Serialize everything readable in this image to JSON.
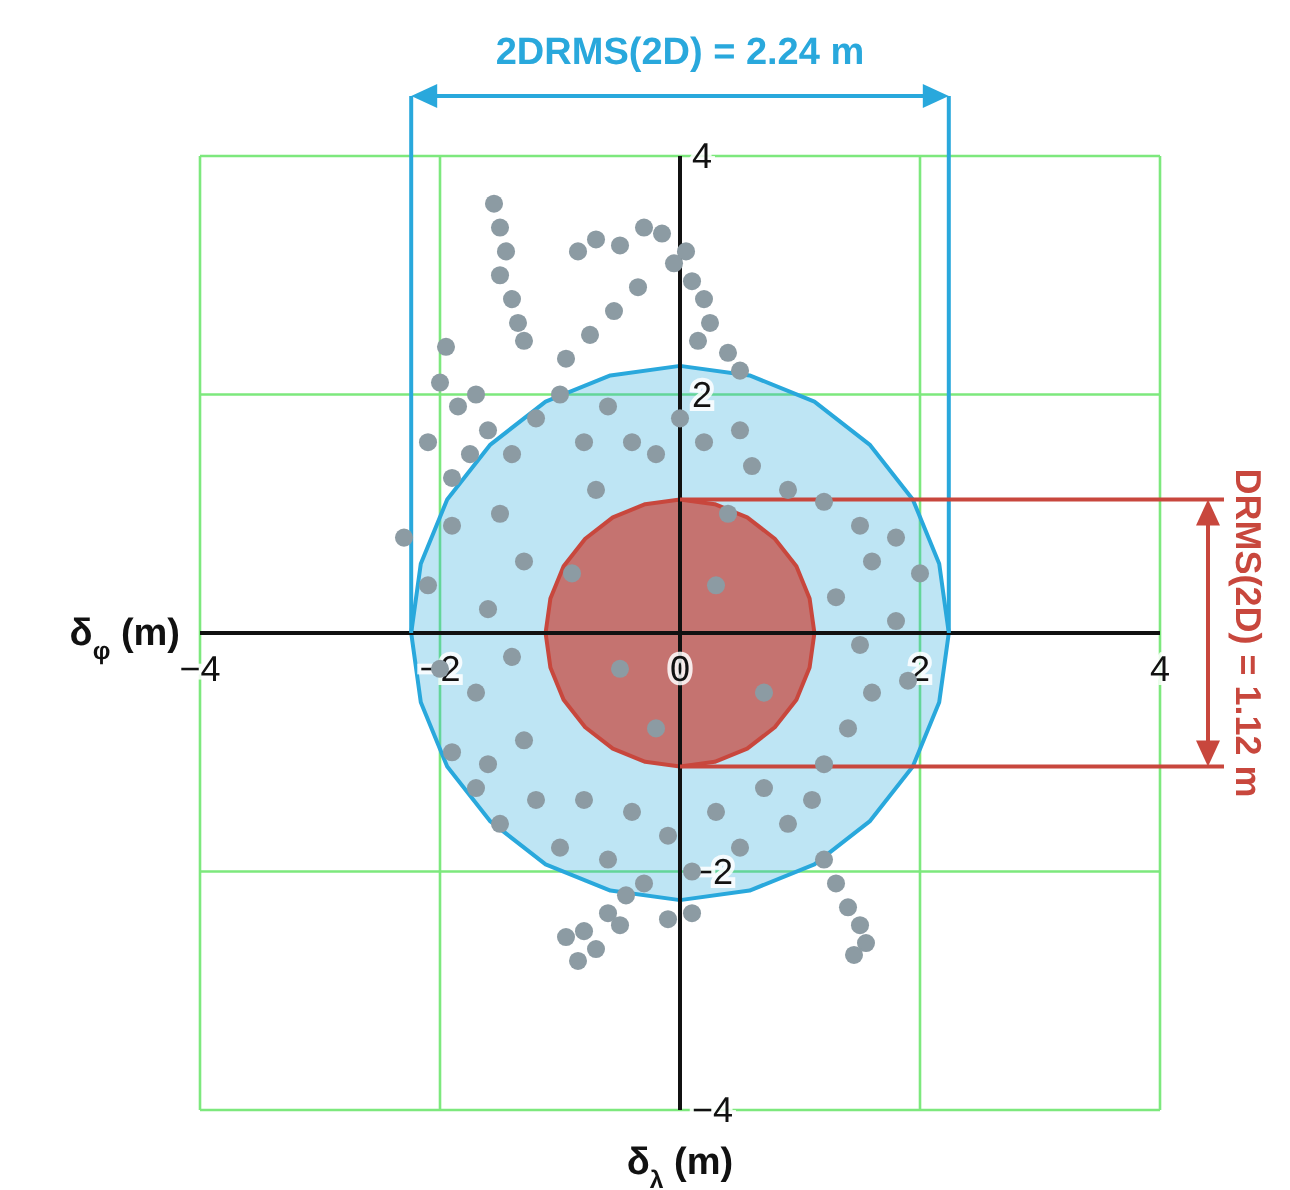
{
  "chart_data": {
    "type": "scatter",
    "xlabel": "δ$_{λ}$ (m)",
    "ylabel": "δ$_{φ}$ (m)",
    "annotations": [
      "2DRMS(2D) = 2.24 m",
      "DRMS(2D) = 1.12 m"
    ],
    "xlim": [
      -4,
      4
    ],
    "ylim": [
      -4,
      4
    ],
    "xticks": [
      -4,
      -2,
      0,
      2,
      4
    ],
    "yticks": [
      -4,
      -2,
      {
        "value": 0,
        "label": null
      },
      2,
      4
    ],
    "grid": true,
    "series": [
      {
        "marker": "circle",
        "color": "#8c9ba3",
        "x": [
          -1.55,
          -1.5,
          -1.45,
          -1.5,
          -1.4,
          -1.35,
          -1.3,
          -0.85,
          -0.7,
          -0.5,
          -0.3,
          -0.15,
          -0.05,
          -0.35,
          -0.55,
          -0.75,
          -0.95,
          0.05,
          0.1,
          0.2,
          0.25,
          0.15,
          0.4,
          0.5,
          -1.95,
          -2.0,
          -1.85,
          -1.7,
          -1.6,
          -1.75,
          -2.1,
          -1.9,
          -1.4,
          -1.2,
          -1.0,
          -0.8,
          -0.6,
          -0.4,
          -0.2,
          0.0,
          0.2,
          0.5,
          0.6,
          0.9,
          1.2,
          1.5,
          1.8,
          1.6,
          2.0,
          -2.3,
          -2.1,
          -1.9,
          -1.6,
          -1.5,
          -1.3,
          -2.0,
          -1.7,
          -1.4,
          -1.3,
          -1.6,
          -1.9,
          1.3,
          1.5,
          1.8,
          1.6,
          1.4,
          1.9,
          1.2,
          -0.9,
          -0.5,
          0.3,
          0.7,
          -0.2,
          0.4,
          -0.7,
          -1.2,
          -1.0,
          -0.8,
          -0.6,
          -0.4,
          -0.3,
          -0.1,
          0.1,
          0.3,
          0.5,
          0.7,
          0.9,
          1.1,
          -1.5,
          -1.7,
          -0.45,
          -0.6,
          -0.8,
          -0.95,
          -0.85,
          -0.7,
          -0.5,
          -0.1,
          0.1,
          1.2,
          1.3,
          1.4,
          1.5,
          1.55,
          1.45
        ],
        "values": [
          3.6,
          3.4,
          3.2,
          3.0,
          2.8,
          2.6,
          2.45,
          3.2,
          3.3,
          3.25,
          3.4,
          3.35,
          3.1,
          2.9,
          2.7,
          2.5,
          2.3,
          3.2,
          2.95,
          2.8,
          2.6,
          2.45,
          2.35,
          2.2,
          2.4,
          2.1,
          1.9,
          2.0,
          1.7,
          1.5,
          1.6,
          1.3,
          1.5,
          1.8,
          2.0,
          1.6,
          1.9,
          1.6,
          1.5,
          1.8,
          1.6,
          1.7,
          1.4,
          1.2,
          1.1,
          0.9,
          0.8,
          0.6,
          0.5,
          0.8,
          0.4,
          0.9,
          0.2,
          1.0,
          0.6,
          -0.3,
          -0.5,
          -0.2,
          -0.9,
          -1.1,
          -1.0,
          0.3,
          -0.1,
          0.1,
          -0.5,
          -0.8,
          -0.4,
          -1.1,
          0.5,
          -0.3,
          0.4,
          -0.5,
          -0.8,
          1.0,
          1.2,
          -1.4,
          -1.8,
          -1.4,
          -1.9,
          -1.5,
          -2.1,
          -1.7,
          -2.0,
          -1.5,
          -1.8,
          -1.3,
          -1.6,
          -1.4,
          -1.6,
          -1.3,
          -2.2,
          -2.35,
          -2.5,
          -2.55,
          -2.75,
          -2.65,
          -2.45,
          -2.4,
          -2.35,
          -1.9,
          -2.1,
          -2.3,
          -2.45,
          -2.6,
          -2.7
        ]
      },
      {
        "type": "area",
        "color": "#29a8dc",
        "x": [
          -2.24,
          -2.16,
          -1.94,
          -1.58,
          -1.12,
          -0.58,
          0,
          0.58,
          1.12,
          1.58,
          1.94,
          2.16,
          2.24
        ],
        "values": [
          0,
          0.58,
          1.12,
          1.58,
          1.94,
          2.16,
          2.24,
          2.16,
          1.94,
          1.58,
          1.12,
          0.58,
          0
        ]
      },
      {
        "type": "area",
        "color": "#29a8dc",
        "x": [
          -2.24,
          -2.16,
          -1.94,
          -1.58,
          -1.12,
          -0.58,
          0,
          0.58,
          1.12,
          1.58,
          1.94,
          2.16,
          2.24
        ],
        "values": [
          0,
          -0.58,
          -1.12,
          -1.58,
          -1.94,
          -2.16,
          -2.24,
          -2.16,
          -1.94,
          -1.58,
          -1.12,
          -0.58,
          0
        ]
      },
      {
        "type": "area",
        "color": "#c8473d",
        "x": [
          -1.12,
          -1.08,
          -0.97,
          -0.79,
          -0.56,
          -0.29,
          0,
          0.29,
          0.56,
          0.79,
          0.97,
          1.08,
          1.12
        ],
        "values": [
          0,
          0.29,
          0.56,
          0.79,
          0.97,
          1.08,
          1.12,
          1.08,
          0.97,
          0.79,
          0.56,
          0.29,
          0
        ]
      },
      {
        "type": "area",
        "color": "#c8473d",
        "x": [
          -1.12,
          -1.08,
          -0.97,
          -0.79,
          -0.56,
          -0.29,
          0,
          0.29,
          0.56,
          0.79,
          0.97,
          1.08,
          1.12
        ],
        "values": [
          0,
          -0.29,
          -0.56,
          -0.79,
          -0.97,
          -1.08,
          -1.12,
          -1.08,
          -0.97,
          -0.79,
          -0.56,
          -0.29,
          0
        ]
      }
    ]
  }
}
